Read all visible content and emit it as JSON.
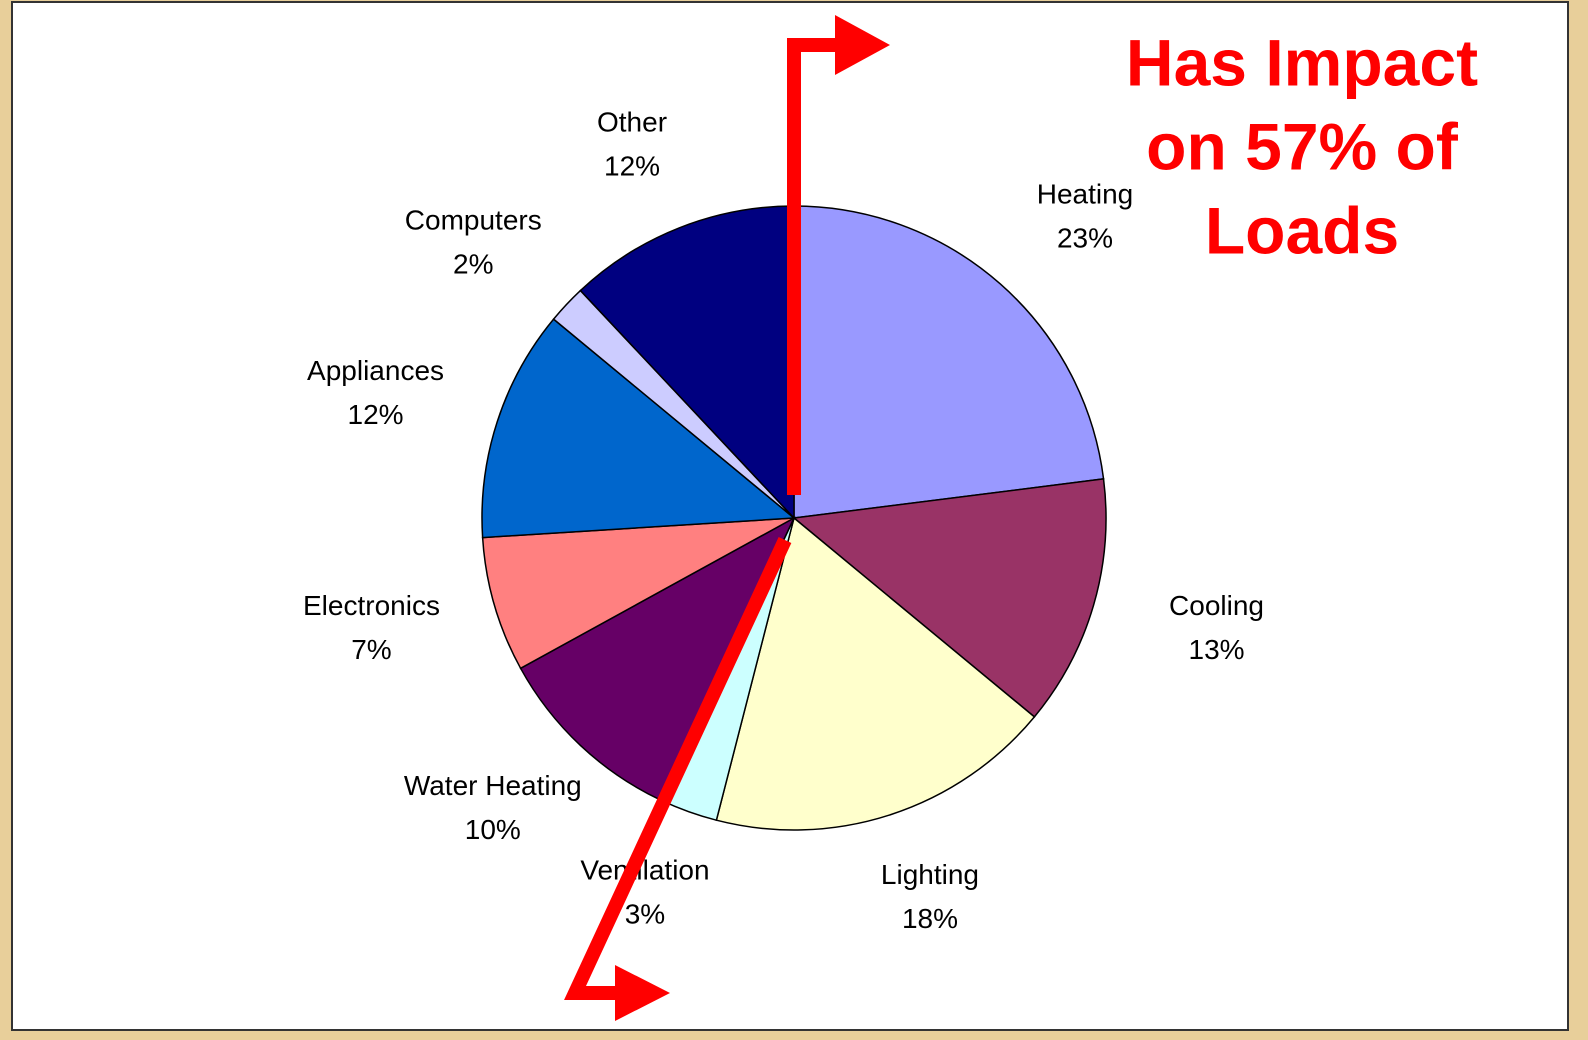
{
  "chart_data": {
    "type": "pie",
    "categories": [
      "Heating",
      "Cooling",
      "Lighting",
      "Ventilation",
      "Water Heating",
      "Electronics",
      "Appliances",
      "Computers",
      "Other"
    ],
    "values": [
      23,
      13,
      18,
      3,
      10,
      7,
      12,
      2,
      12
    ],
    "value_labels": [
      "23%",
      "13%",
      "18%",
      "3%",
      "10%",
      "7%",
      "12%",
      "2%",
      "12%"
    ],
    "colors": [
      "#9999ff",
      "#993366",
      "#ffffcc",
      "#ccffff",
      "#660066",
      "#ff8080",
      "#0066cc",
      "#ccccff",
      "#000080"
    ],
    "annotation": [
      "Has Impact",
      "on 57% of",
      "Loads"
    ]
  }
}
